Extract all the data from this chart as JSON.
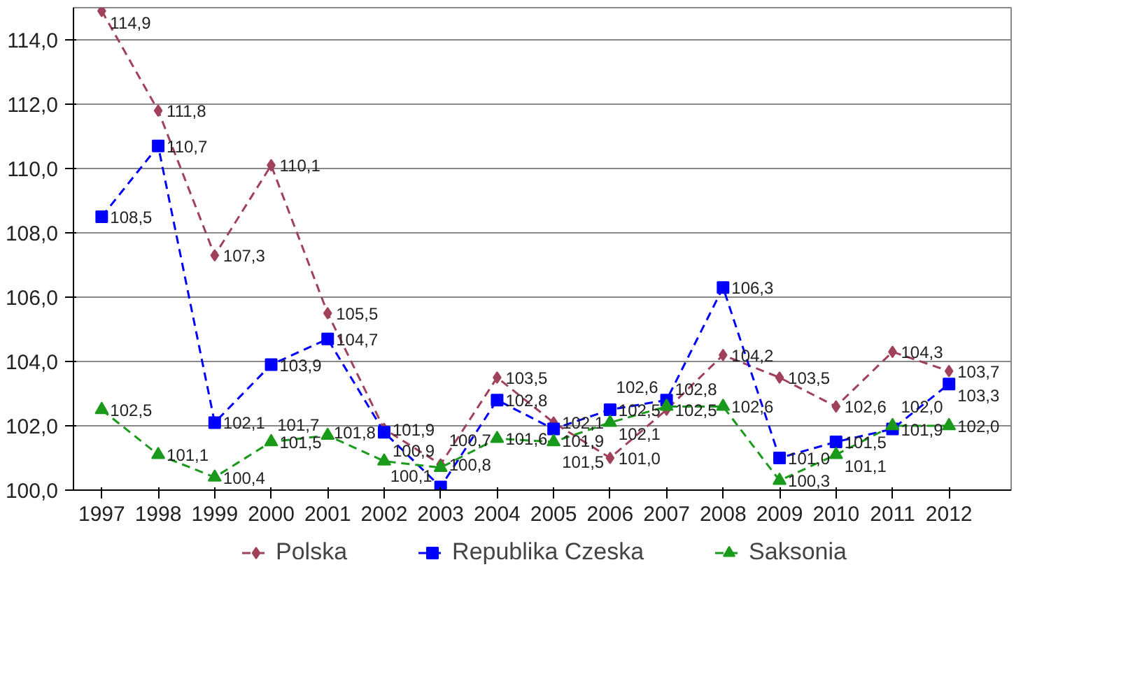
{
  "chart_data": {
    "type": "line",
    "categories": [
      "1997",
      "1998",
      "1999",
      "2000",
      "2001",
      "2002",
      "2003",
      "2004",
      "2005",
      "2006",
      "2007",
      "2008",
      "2009",
      "2010",
      "2011",
      "2012"
    ],
    "series": [
      {
        "name": "Polska",
        "color": "#a0405a",
        "marker": "diamond",
        "values": [
          114.9,
          111.8,
          107.3,
          110.1,
          105.5,
          101.9,
          100.8,
          103.5,
          102.1,
          101.0,
          102.5,
          104.2,
          103.5,
          102.6,
          104.3,
          103.7
        ],
        "value_labels": [
          "114,9",
          "111,8",
          "107,3",
          "110,1",
          "105,5",
          "101,9",
          "100,8",
          "103,5",
          "102,1",
          "101,0",
          "102,5",
          "104,2",
          "103,5",
          "102,6",
          "104,3",
          "103,7"
        ]
      },
      {
        "name": "Republika Czeska",
        "color": "#0000ff",
        "marker": "square",
        "values": [
          108.5,
          110.7,
          102.1,
          103.9,
          104.7,
          101.8,
          100.1,
          102.8,
          101.9,
          102.5,
          102.8,
          106.3,
          101.0,
          101.5,
          101.9,
          103.3
        ],
        "value_labels": [
          "108,5",
          "110,7",
          "102,1",
          "103,9",
          "104,7",
          "101,8",
          "100,1",
          "102,8",
          "101,9",
          "102,5",
          "102,8",
          "106,3",
          "101,0",
          "101,5",
          "101,9",
          "103,3"
        ]
      },
      {
        "name": "Saksonia",
        "color": "#1a9a1a",
        "marker": "triangle",
        "values": [
          102.5,
          101.1,
          100.4,
          101.5,
          101.7,
          100.9,
          100.7,
          101.6,
          101.5,
          102.1,
          102.6,
          102.6,
          100.3,
          101.1,
          102.0,
          102.0
        ],
        "value_labels": [
          "102,5",
          "101,1",
          "100,4",
          "101,5",
          "101,7",
          "100,9",
          "100,7",
          "101,6",
          "101,5",
          "102,1",
          "102,6",
          "102,6",
          "100,3",
          "101,1",
          "102,0",
          "102,0"
        ]
      }
    ],
    "ylim": [
      100,
      115
    ],
    "yticks": [
      {
        "value": 100,
        "label": "100,0"
      },
      {
        "value": 102,
        "label": "102,0"
      },
      {
        "value": 104,
        "label": "104,0"
      },
      {
        "value": 106,
        "label": "106,0"
      },
      {
        "value": 108,
        "label": "108,0"
      },
      {
        "value": 110,
        "label": "110,0"
      },
      {
        "value": 112,
        "label": "112,0"
      },
      {
        "value": 114,
        "label": "114,0"
      }
    ],
    "grid": "y",
    "legend": "bottom",
    "line_style": "dashed"
  }
}
